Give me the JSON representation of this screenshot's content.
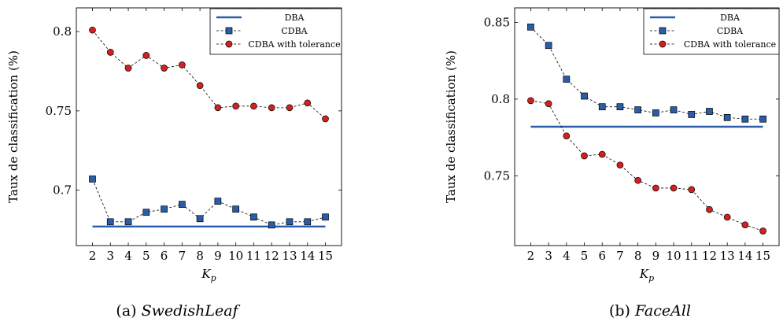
{
  "chart_data": [
    {
      "type": "line",
      "caption_label": "(a)",
      "caption_name": "SwedishLeaf",
      "xlabel": "K",
      "xlabel_sub": "p",
      "ylabel": "Taux de classification (%)",
      "x": [
        2,
        3,
        4,
        5,
        6,
        7,
        8,
        9,
        10,
        11,
        12,
        13,
        14,
        15
      ],
      "ylim": [
        0.665,
        0.815
      ],
      "yticks": [
        0.7,
        0.75,
        0.8
      ],
      "ytick_labels": [
        "0.7",
        "0.75",
        "0.8"
      ],
      "legend": "top-right",
      "grid": false,
      "series": [
        {
          "name": "DBA",
          "style": "solid",
          "color": "#2b5ca8",
          "values": [
            0.677,
            0.677,
            0.677,
            0.677,
            0.677,
            0.677,
            0.677,
            0.677,
            0.677,
            0.677,
            0.677,
            0.677,
            0.677,
            0.677
          ]
        },
        {
          "name": "CDBA",
          "style": "dashed-square",
          "color": "#2b5ca8",
          "values": [
            0.707,
            0.68,
            0.68,
            0.686,
            0.688,
            0.691,
            0.682,
            0.693,
            0.688,
            0.683,
            0.678,
            0.68,
            0.68,
            0.683
          ]
        },
        {
          "name": "CDBA with tolerance",
          "style": "dashed-circle",
          "color": "#d42020",
          "values": [
            0.801,
            0.787,
            0.777,
            0.785,
            0.777,
            0.779,
            0.766,
            0.752,
            0.753,
            0.753,
            0.752,
            0.752,
            0.755,
            0.745
          ]
        }
      ]
    },
    {
      "type": "line",
      "caption_label": "(b)",
      "caption_name": "FaceAll",
      "xlabel": "K",
      "xlabel_sub": "p",
      "ylabel": "Taux de classification (%)",
      "x": [
        2,
        3,
        4,
        5,
        6,
        7,
        8,
        9,
        10,
        11,
        12,
        13,
        14,
        15
      ],
      "ylim": [
        0.7045,
        0.8595
      ],
      "yticks": [
        0.75,
        0.8,
        0.85
      ],
      "ytick_labels": [
        "0.75",
        "0.8",
        "0.85"
      ],
      "legend": "top-right",
      "grid": false,
      "series": [
        {
          "name": "DBA",
          "style": "solid",
          "color": "#2b5ca8",
          "values": [
            0.782,
            0.782,
            0.782,
            0.782,
            0.782,
            0.782,
            0.782,
            0.782,
            0.782,
            0.782,
            0.782,
            0.782,
            0.782,
            0.782
          ]
        },
        {
          "name": "CDBA",
          "style": "dashed-square",
          "color": "#2b5ca8",
          "values": [
            0.847,
            0.835,
            0.813,
            0.802,
            0.795,
            0.795,
            0.793,
            0.791,
            0.793,
            0.79,
            0.792,
            0.788,
            0.787,
            0.787
          ]
        },
        {
          "name": "CDBA with tolerance",
          "style": "dashed-circle",
          "color": "#d42020",
          "values": [
            0.799,
            0.797,
            0.776,
            0.763,
            0.764,
            0.757,
            0.747,
            0.742,
            0.742,
            0.741,
            0.728,
            0.723,
            0.718,
            0.714
          ]
        }
      ]
    }
  ]
}
